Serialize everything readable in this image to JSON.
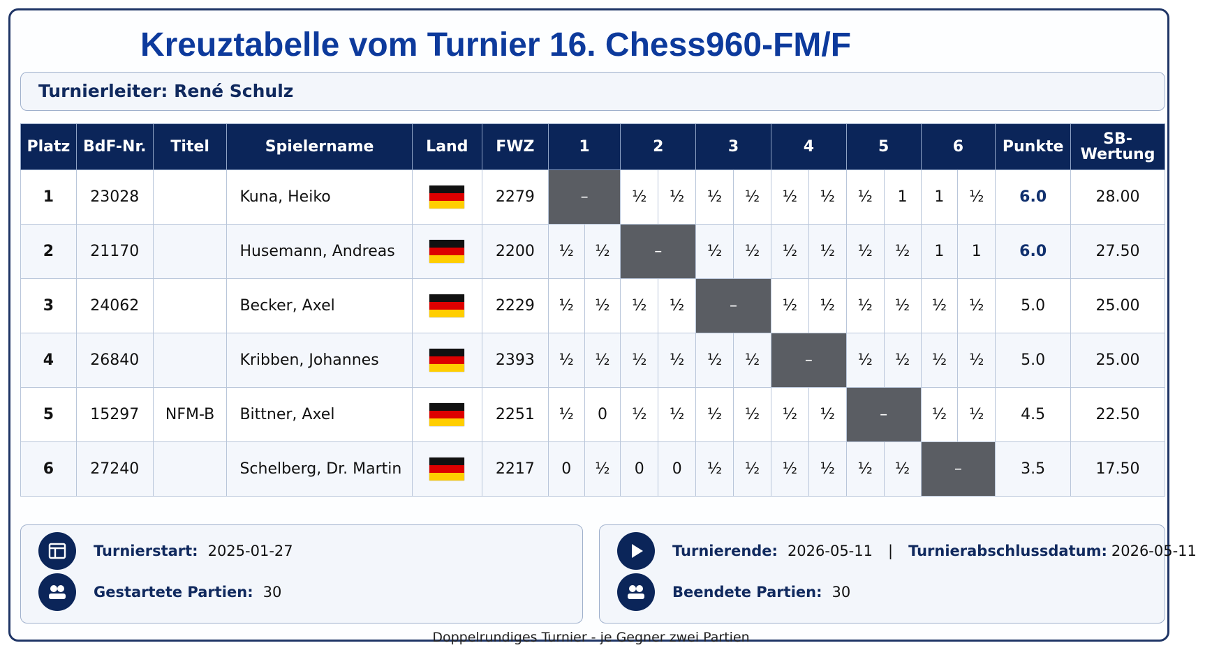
{
  "title": "Kreuztabelle vom Turnier 16. Chess960-FM/F",
  "director": {
    "label": "Turnierleiter:",
    "name": "René Schulz"
  },
  "columns": [
    "Platz",
    "BdF-Nr.",
    "Titel",
    "Spielername",
    "Land",
    "FWZ",
    "1",
    "2",
    "3",
    "4",
    "5",
    "6",
    "Punkte",
    "SB-Wertung"
  ],
  "rows": [
    {
      "platz": "1",
      "bdf": "23028",
      "titel": "",
      "name": "Kuna, Heiko",
      "land": "DE",
      "fwz": "2279",
      "results": [
        [
          "–"
        ],
        [
          "½",
          "½"
        ],
        [
          "½",
          "½"
        ],
        [
          "½",
          "½"
        ],
        [
          "½",
          "1"
        ],
        [
          "1",
          "½"
        ]
      ],
      "punkte": "6.0",
      "sb": "28.00"
    },
    {
      "platz": "2",
      "bdf": "21170",
      "titel": "",
      "name": "Husemann, Andreas",
      "land": "DE",
      "fwz": "2200",
      "results": [
        [
          "½",
          "½"
        ],
        [
          "–"
        ],
        [
          "½",
          "½"
        ],
        [
          "½",
          "½"
        ],
        [
          "½",
          "½"
        ],
        [
          "1",
          "1"
        ]
      ],
      "punkte": "6.0",
      "sb": "27.50"
    },
    {
      "platz": "3",
      "bdf": "24062",
      "titel": "",
      "name": "Becker, Axel",
      "land": "DE",
      "fwz": "2229",
      "results": [
        [
          "½",
          "½"
        ],
        [
          "½",
          "½"
        ],
        [
          "–"
        ],
        [
          "½",
          "½"
        ],
        [
          "½",
          "½"
        ],
        [
          "½",
          "½"
        ]
      ],
      "punkte": "5.0",
      "sb": "25.00"
    },
    {
      "platz": "4",
      "bdf": "26840",
      "titel": "",
      "name": "Kribben, Johannes",
      "land": "DE",
      "fwz": "2393",
      "results": [
        [
          "½",
          "½"
        ],
        [
          "½",
          "½"
        ],
        [
          "½",
          "½"
        ],
        [
          "–"
        ],
        [
          "½",
          "½"
        ],
        [
          "½",
          "½"
        ]
      ],
      "punkte": "5.0",
      "sb": "25.00"
    },
    {
      "platz": "5",
      "bdf": "15297",
      "titel": "NFM-B",
      "name": "Bittner, Axel",
      "land": "DE",
      "fwz": "2251",
      "results": [
        [
          "½",
          "0"
        ],
        [
          "½",
          "½"
        ],
        [
          "½",
          "½"
        ],
        [
          "½",
          "½"
        ],
        [
          "–"
        ],
        [
          "½",
          "½"
        ]
      ],
      "punkte": "4.5",
      "sb": "22.50"
    },
    {
      "platz": "6",
      "bdf": "27240",
      "titel": "",
      "name": "Schelberg, Dr. Martin",
      "land": "DE",
      "fwz": "2217",
      "results": [
        [
          "0",
          "½"
        ],
        [
          "0",
          "0"
        ],
        [
          "½",
          "½"
        ],
        [
          "½",
          "½"
        ],
        [
          "½",
          "½"
        ],
        [
          "–"
        ]
      ],
      "punkte": "3.5",
      "sb": "17.50"
    }
  ],
  "info": {
    "start": {
      "label": "Turnierstart:",
      "value": "2025-01-27",
      "icon": "calendar-icon"
    },
    "started_games": {
      "label": "Gestartete Partien:",
      "value": "30",
      "icon": "players-icon"
    },
    "end": {
      "label": "Turnierende:",
      "value": "2026-05-11",
      "icon": "play-icon"
    },
    "close_date": {
      "label": "Turnierabschlussdatum:",
      "value": "2026-05-11"
    },
    "finished_games": {
      "label": "Beendete Partien:",
      "value": "30",
      "icon": "players-icon"
    },
    "separator": "|"
  },
  "footer": "Doppelrundiges Turnier - je Gegner zwei Partien",
  "colors": {
    "header_bg": "#0b2559",
    "title": "#0d3a9c",
    "self_cell": "#5a5d63"
  }
}
